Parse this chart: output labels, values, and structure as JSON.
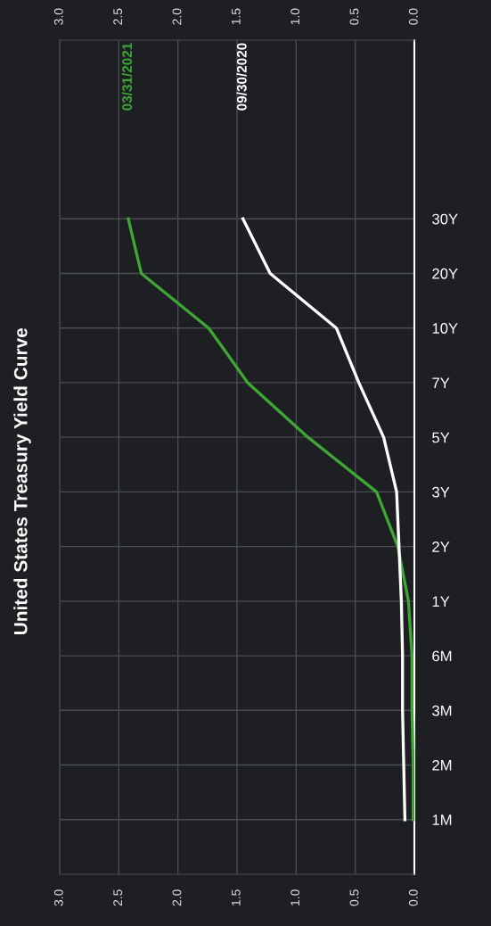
{
  "chart_data": {
    "type": "line",
    "orientation": "horizontal",
    "title": "United States Treasury Yield Curve",
    "categories": [
      "30Y",
      "20Y",
      "10Y",
      "7Y",
      "5Y",
      "3Y",
      "2Y",
      "1Y",
      "6M",
      "3M",
      "2M",
      "1M"
    ],
    "series": [
      {
        "name": "03/31/2021",
        "color": "#3fa535",
        "values": [
          2.42,
          2.31,
          1.74,
          1.41,
          0.9,
          0.32,
          0.14,
          0.05,
          0.02,
          0.02,
          0.01,
          0.01
        ]
      },
      {
        "name": "09/30/2020",
        "color": "#ffffff",
        "values": [
          1.45,
          1.22,
          0.66,
          0.47,
          0.26,
          0.15,
          0.13,
          0.11,
          0.1,
          0.1,
          0.09,
          0.08
        ]
      }
    ],
    "xlim": [
      3.0,
      0
    ],
    "xticks": [
      {
        "value": 0,
        "label": "0.0"
      },
      {
        "value": 0.5,
        "label": "0.5"
      },
      {
        "value": 1,
        "label": "1.0"
      },
      {
        "value": 1.5,
        "label": "1.5"
      },
      {
        "value": 2,
        "label": "2.0"
      },
      {
        "value": 2.5,
        "label": "2.5"
      },
      {
        "value": 3,
        "label": "3.0"
      }
    ],
    "grid": true,
    "legend": false,
    "marker": "none",
    "line_style": "solid"
  }
}
